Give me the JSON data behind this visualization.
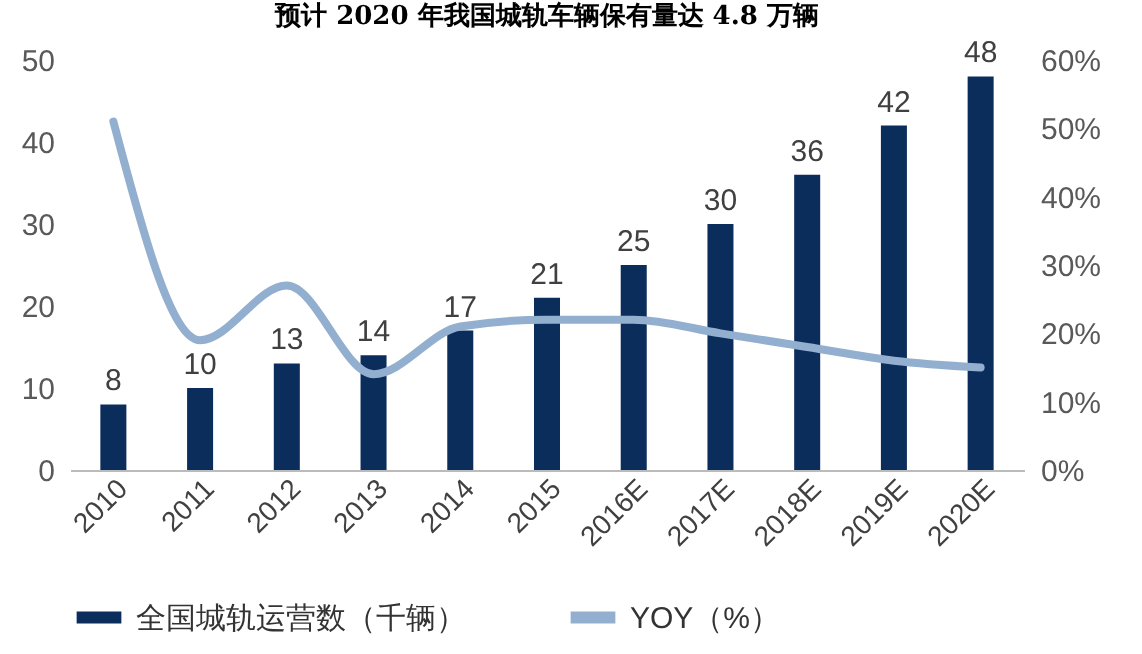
{
  "chart_data": {
    "type": "bar",
    "title": "预计 2020 年我国城轨车辆保有量达 4.8 万辆",
    "categories": [
      "2010",
      "2011",
      "2012",
      "2013",
      "2014",
      "2015",
      "2016E",
      "2017E",
      "2018E",
      "2019E",
      "2020E"
    ],
    "series": [
      {
        "name": "全国城轨运营数（千辆）",
        "color": "#0b2d5b",
        "values": [
          8,
          10,
          13,
          14,
          17,
          21,
          25,
          30,
          36,
          42,
          48
        ],
        "value_labels": [
          "8",
          "10",
          "13",
          "14",
          "17",
          "21",
          "25",
          "30",
          "36",
          "42",
          "48"
        ]
      },
      {
        "name": "YOY（%）",
        "type": "line",
        "axis": "y2",
        "color": "#93afd0",
        "values": [
          51,
          19,
          27,
          14,
          21,
          22,
          22,
          20,
          18,
          16,
          15
        ]
      }
    ],
    "ylim": [
      0,
      50
    ],
    "yticks": [
      0,
      10,
      20,
      30,
      40,
      50
    ],
    "y2lim": [
      0,
      60
    ],
    "y2ticks": [
      {
        "value": 0,
        "label": "0%"
      },
      {
        "value": 10,
        "label": "10%"
      },
      {
        "value": 20,
        "label": "20%"
      },
      {
        "value": 30,
        "label": "30%"
      },
      {
        "value": 40,
        "label": "40%"
      },
      {
        "value": 50,
        "label": "50%"
      },
      {
        "value": 60,
        "label": "60%"
      }
    ],
    "grid": false,
    "legend": "bottom"
  }
}
